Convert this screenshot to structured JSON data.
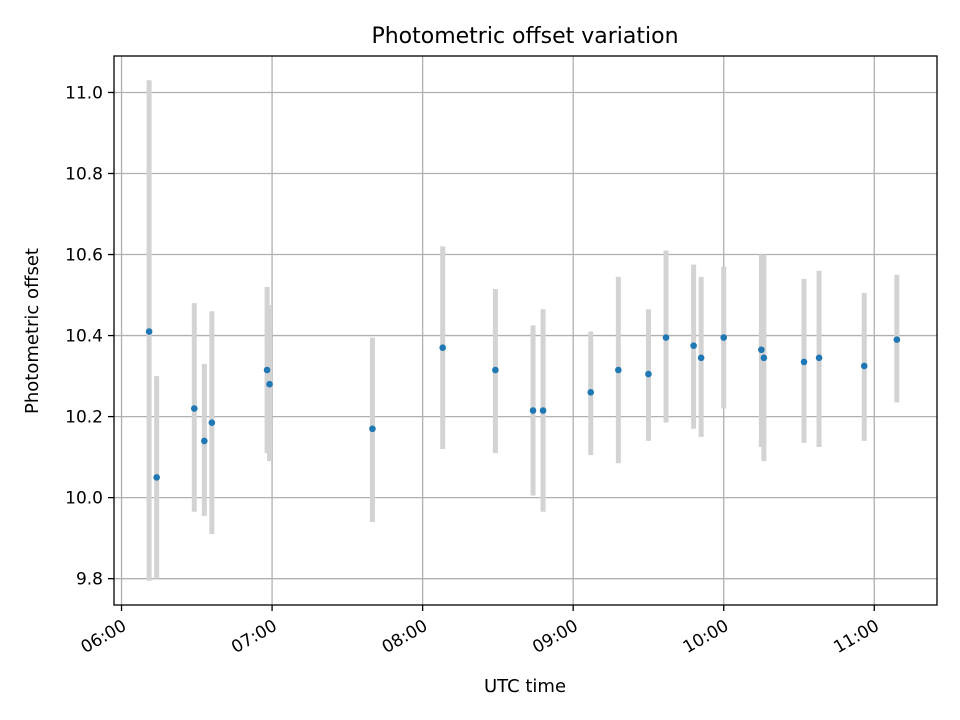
{
  "chart_data": {
    "type": "scatter",
    "title": "Photometric offset variation",
    "xlabel": "UTC time",
    "ylabel": "Photometric offset",
    "x_ticks": [
      "06:00",
      "07:00",
      "08:00",
      "09:00",
      "10:00",
      "11:00"
    ],
    "y_ticks": [
      "9.8",
      "10.0",
      "10.2",
      "10.4",
      "10.6",
      "10.8",
      "11.0"
    ],
    "xlim": [
      "05:57",
      "11:25"
    ],
    "ylim": [
      9.735,
      11.09
    ],
    "grid": true,
    "colors": {
      "point": "#1f77b4",
      "errorbar": "#d3d3d3",
      "grid": "#b0b0b0"
    },
    "points": [
      {
        "time": "06:11",
        "y": 10.41,
        "ylo": 9.795,
        "yhi": 11.03
      },
      {
        "time": "06:14",
        "y": 10.05,
        "ylo": 9.8,
        "yhi": 10.3
      },
      {
        "time": "06:29",
        "y": 10.22,
        "ylo": 9.965,
        "yhi": 10.48
      },
      {
        "time": "06:33",
        "y": 10.14,
        "ylo": 9.955,
        "yhi": 10.33
      },
      {
        "time": "06:36",
        "y": 10.185,
        "ylo": 9.91,
        "yhi": 10.46
      },
      {
        "time": "06:58",
        "y": 10.315,
        "ylo": 10.11,
        "yhi": 10.52
      },
      {
        "time": "06:59",
        "y": 10.28,
        "ylo": 10.09,
        "yhi": 10.475
      },
      {
        "time": "07:40",
        "y": 10.17,
        "ylo": 9.94,
        "yhi": 10.395
      },
      {
        "time": "08:08",
        "y": 10.37,
        "ylo": 10.12,
        "yhi": 10.62
      },
      {
        "time": "08:29",
        "y": 10.315,
        "ylo": 10.11,
        "yhi": 10.515
      },
      {
        "time": "08:44",
        "y": 10.215,
        "ylo": 10.005,
        "yhi": 10.425
      },
      {
        "time": "08:48",
        "y": 10.215,
        "ylo": 9.965,
        "yhi": 10.465
      },
      {
        "time": "09:07",
        "y": 10.26,
        "ylo": 10.105,
        "yhi": 10.41
      },
      {
        "time": "09:18",
        "y": 10.315,
        "ylo": 10.085,
        "yhi": 10.545
      },
      {
        "time": "09:30",
        "y": 10.305,
        "ylo": 10.14,
        "yhi": 10.465
      },
      {
        "time": "09:37",
        "y": 10.395,
        "ylo": 10.185,
        "yhi": 10.61
      },
      {
        "time": "09:48",
        "y": 10.375,
        "ylo": 10.17,
        "yhi": 10.575
      },
      {
        "time": "09:51",
        "y": 10.345,
        "ylo": 10.15,
        "yhi": 10.545
      },
      {
        "time": "10:00",
        "y": 10.395,
        "ylo": 10.22,
        "yhi": 10.57
      },
      {
        "time": "10:15",
        "y": 10.365,
        "ylo": 10.125,
        "yhi": 10.6
      },
      {
        "time": "10:16",
        "y": 10.345,
        "ylo": 10.09,
        "yhi": 10.6
      },
      {
        "time": "10:32",
        "y": 10.335,
        "ylo": 10.135,
        "yhi": 10.54
      },
      {
        "time": "10:38",
        "y": 10.345,
        "ylo": 10.125,
        "yhi": 10.56
      },
      {
        "time": "10:56",
        "y": 10.325,
        "ylo": 10.14,
        "yhi": 10.505
      },
      {
        "time": "11:09",
        "y": 10.39,
        "ylo": 10.235,
        "yhi": 10.55
      }
    ]
  }
}
